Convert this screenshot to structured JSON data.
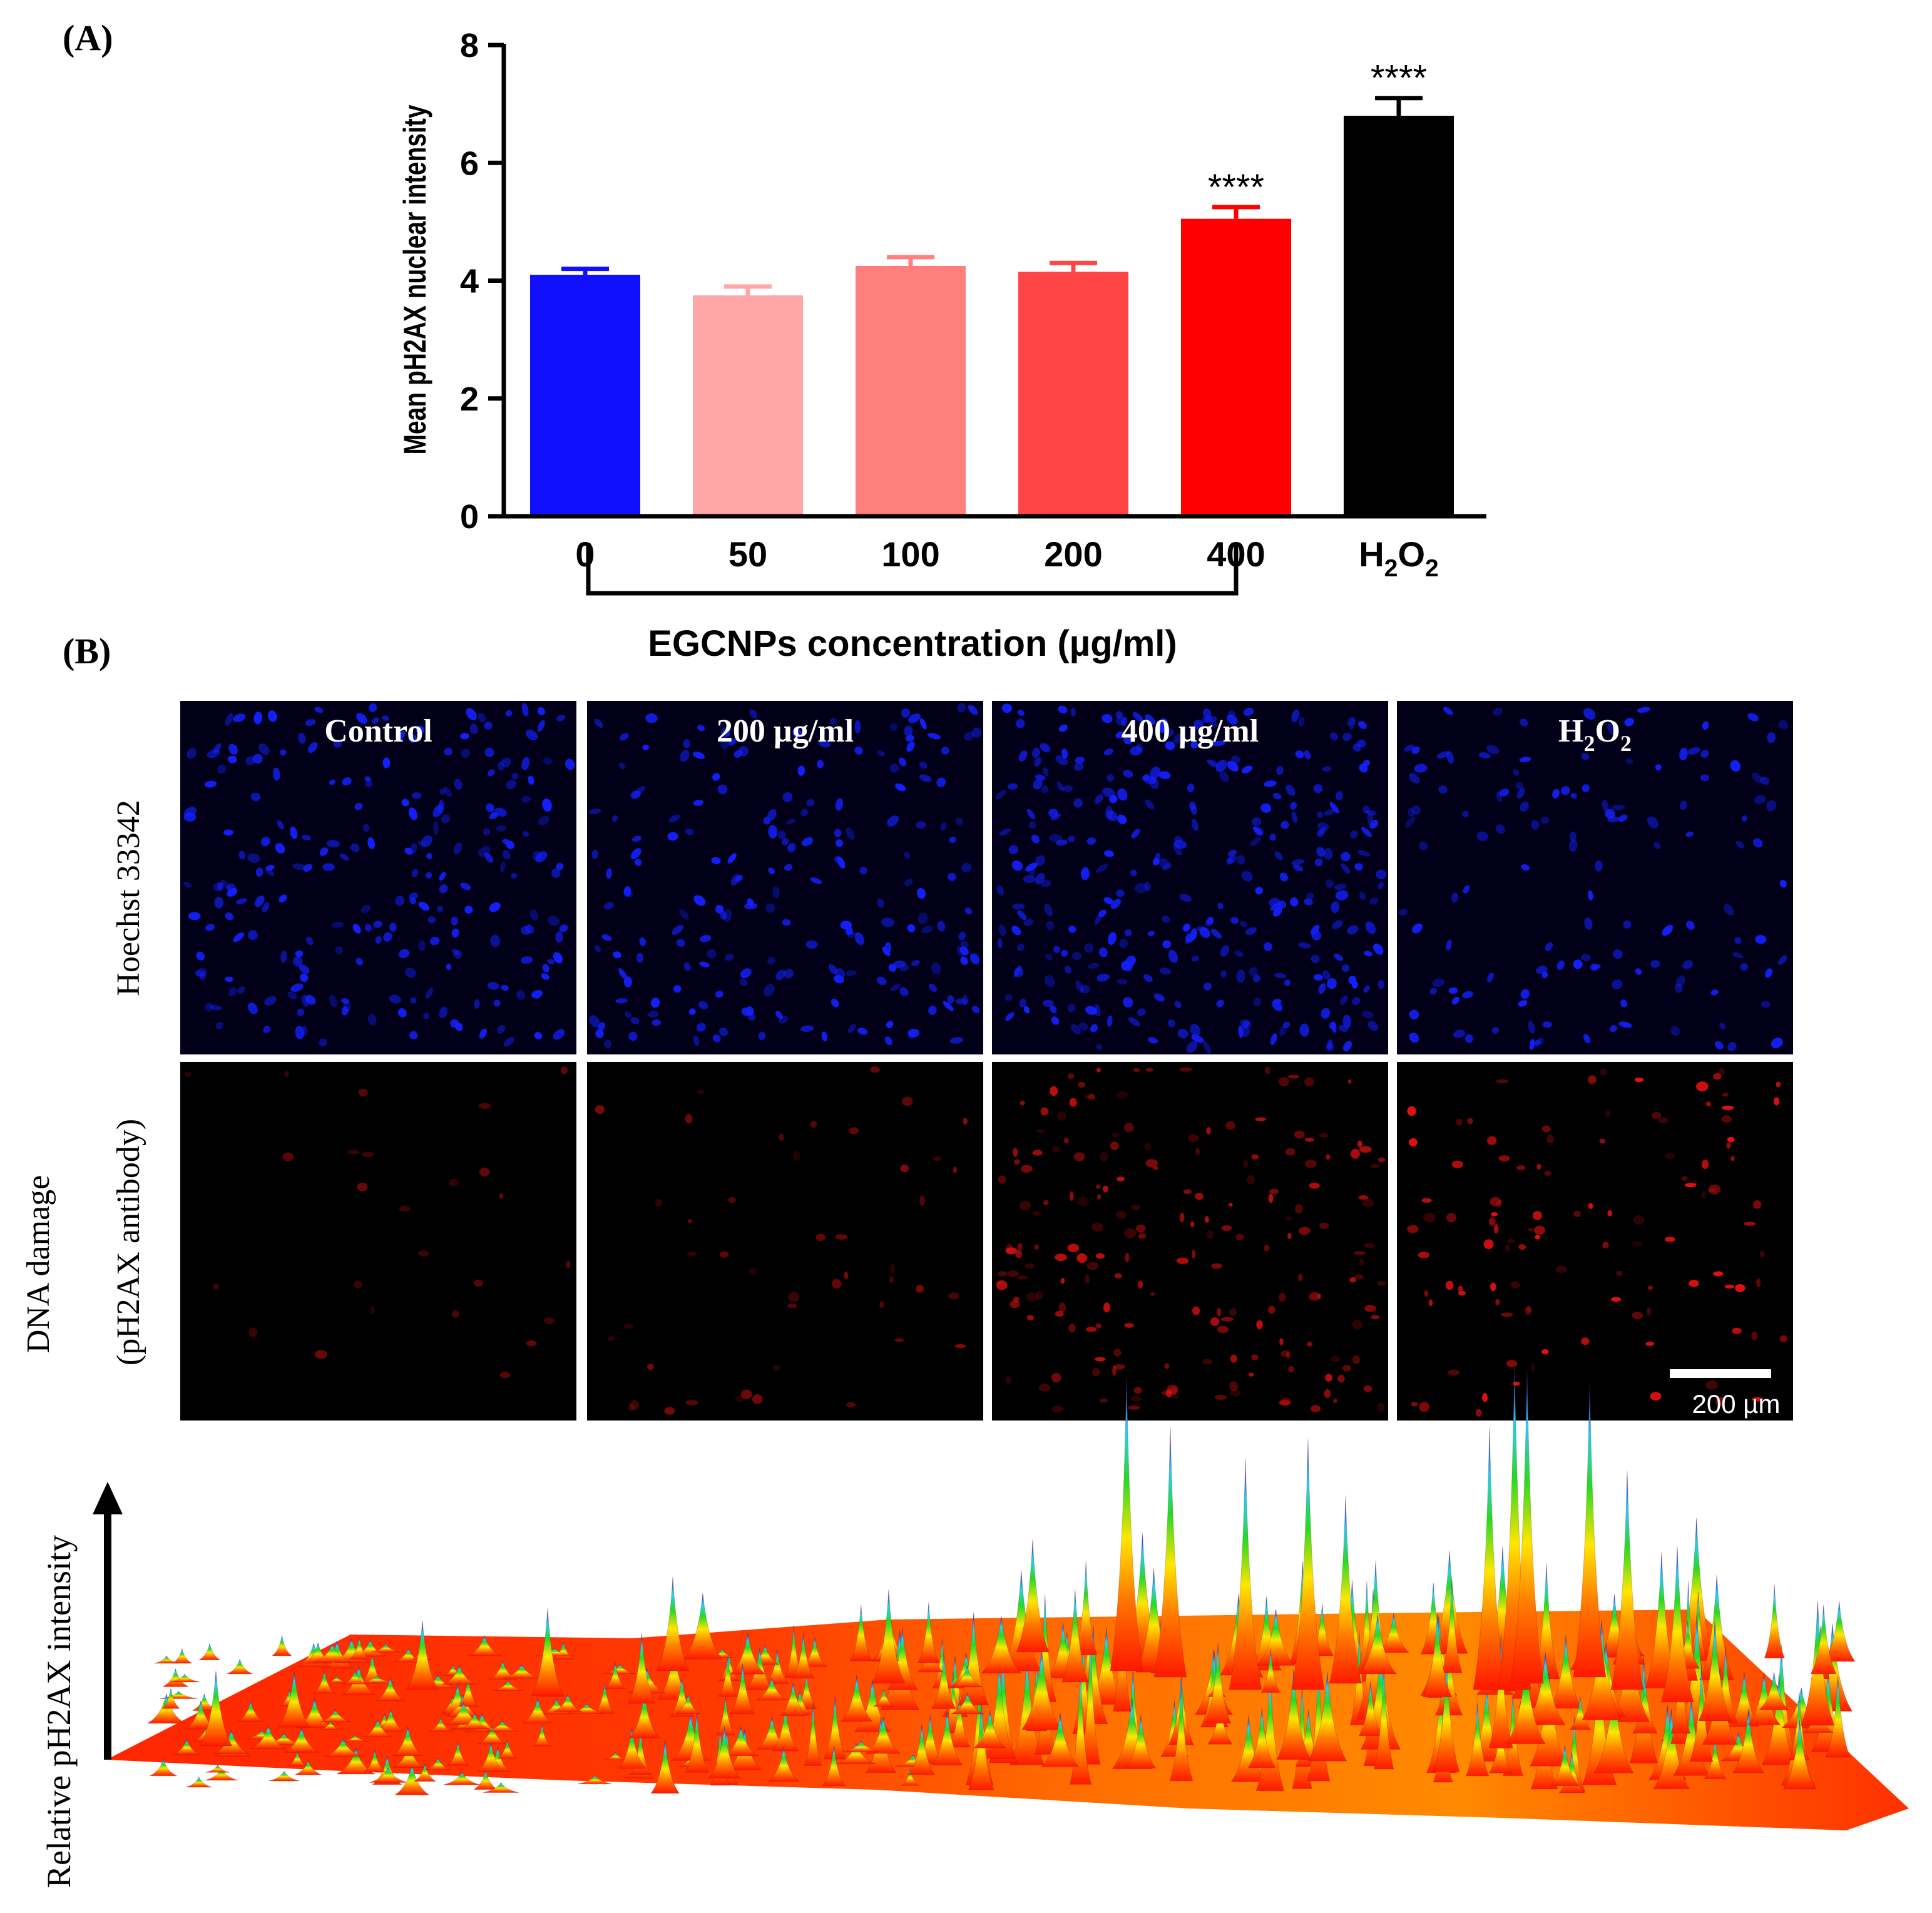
{
  "panel_a": {
    "label": "(A)",
    "chart_data": {
      "type": "bar",
      "ylabel": "Mean pH2AX nuclear intensity",
      "xlabel": "EGCNPs concentration (µg/ml)",
      "ylim": [
        0,
        8
      ],
      "yticks": [
        0,
        2,
        4,
        6,
        8
      ],
      "categories": [
        "0",
        "50",
        "100",
        "200",
        "400",
        "H2O2"
      ],
      "values": [
        4.1,
        3.75,
        4.25,
        4.15,
        5.05,
        6.8
      ],
      "errors": [
        0.1,
        0.15,
        0.15,
        0.15,
        0.2,
        0.3
      ],
      "colors": [
        "#1010ff",
        "#ffa6a6",
        "#ff7f7f",
        "#ff4545",
        "#ff0000",
        "#000000"
      ],
      "significance": [
        "",
        "",
        "",
        "",
        "****",
        "****"
      ],
      "bracket_from": "0",
      "bracket_to": "400"
    }
  },
  "panel_b": {
    "label": "(B)",
    "columns": [
      "Control",
      "200 µg/ml",
      "400 µg/ml",
      "H2O2"
    ],
    "row_labels": {
      "hoechst": "Hoechst 33342",
      "damage_line1": "DNA damage",
      "damage_line2": "(pH2AX antibody)"
    },
    "scale_bar": "200 µm",
    "surface_axis_label": "Relative pH2AX intensity"
  },
  "colors": {
    "nucleus_blue": "#1420ff",
    "foci_red": "#e01010",
    "surface_low": "#ff2000",
    "surface_mid": "#ffee00",
    "surface_high": "#14d414",
    "surface_peak": "#1030e0"
  }
}
